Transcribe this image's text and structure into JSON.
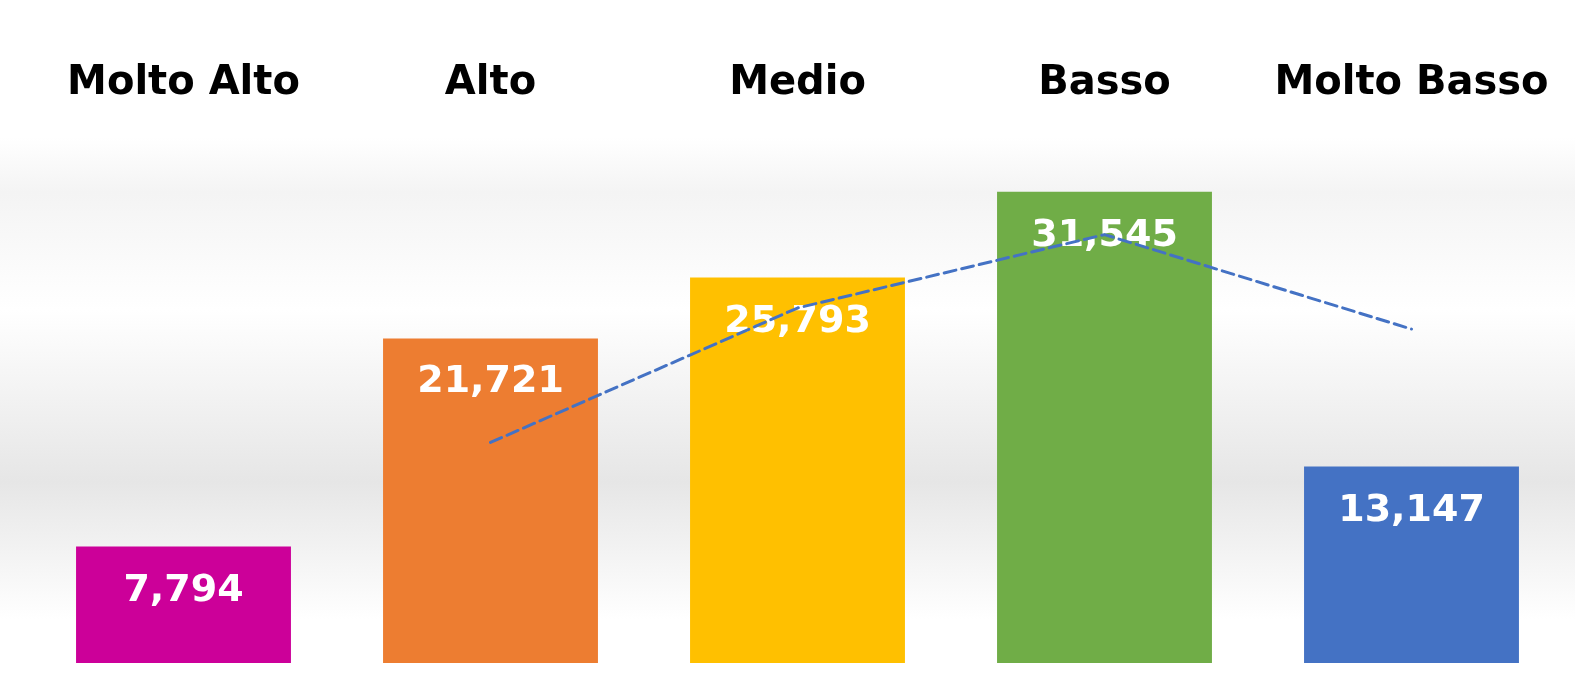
{
  "chart_data": {
    "type": "bar",
    "categories": [
      "Molto Alto",
      "Alto",
      "Medio",
      "Basso",
      "Molto Basso"
    ],
    "series": [
      {
        "colors": [
          "#cc0099",
          "#ed7d31",
          "#ffc000",
          "#70ad47",
          "#4472c4"
        ],
        "values": [
          7794,
          21721,
          25793,
          31545,
          13147
        ],
        "value_labels": [
          "7,794",
          "21,721",
          "25,793",
          "31,545",
          "13,147"
        ]
      },
      {
        "type": "line",
        "color": "#4472c4",
        "line_style": "dashed",
        "marker": "none",
        "values": [
          null,
          14757.5,
          23757,
          28669,
          22346
        ]
      }
    ],
    "grid": false
  }
}
